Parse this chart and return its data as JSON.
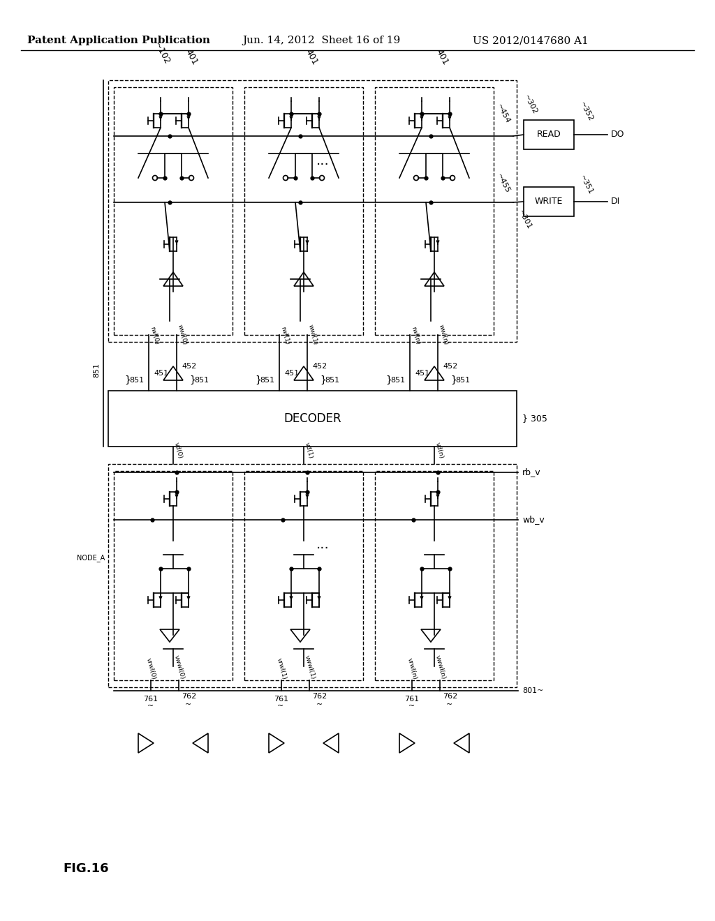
{
  "bg_color": "#ffffff",
  "title_line1": "Patent Application Publication",
  "title_line2": "Jun. 14, 2012  Sheet 16 of 19",
  "title_line3": "US 2012/0147680 A1",
  "fig_label": "FIG.16",
  "header_fontsize": 11,
  "label_fontsize": 9,
  "small_fontsize": 8
}
